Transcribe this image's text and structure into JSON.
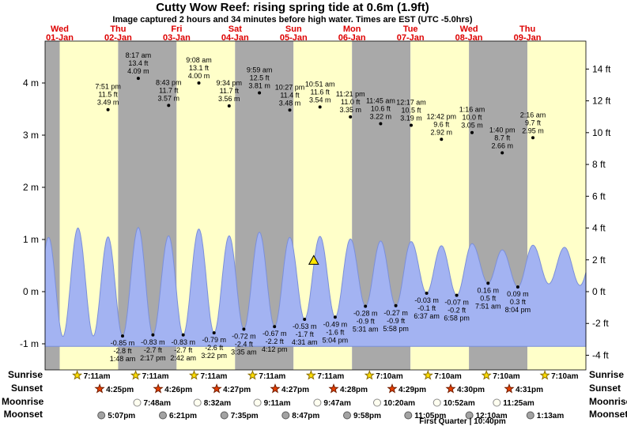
{
  "title": "Cutty Wow Reef: rising  spring tide at 0.6m (1.9ft)",
  "subtitle": "Image captured 2 hours and 34 minutes before high water. Times are EST (UTC -5.0hrs)",
  "colors": {
    "day_band_yellow": "#ffffc9",
    "day_band_gray": "#a9a9a9",
    "tide_fill": "#a3b3f2",
    "tide_stroke": "#7b8fd9",
    "day_label": "#dd0000",
    "marker_fill": "#ffe500"
  },
  "chart_data": {
    "type": "area",
    "title": "Cutty Wow Reef tide heights",
    "ylim_m": [
      -1.5,
      4.8
    ],
    "days": [
      {
        "name": "Wed",
        "date": "01-Jan"
      },
      {
        "name": "Thu",
        "date": "02-Jan"
      },
      {
        "name": "Fri",
        "date": "03-Jan"
      },
      {
        "name": "Sat",
        "date": "04-Jan"
      },
      {
        "name": "Sun",
        "date": "05-Jan"
      },
      {
        "name": "Mon",
        "date": "06-Jan"
      },
      {
        "name": "Tue",
        "date": "07-Jan"
      },
      {
        "name": "Wed",
        "date": "08-Jan"
      },
      {
        "name": "Thu",
        "date": "09-Jan"
      }
    ],
    "y_axis_left_labels": [
      {
        "label": "4 m",
        "value": 4
      },
      {
        "label": "3 m",
        "value": 3
      },
      {
        "label": "2 m",
        "value": 2
      },
      {
        "label": "1 m",
        "value": 1
      },
      {
        "label": "0 m",
        "value": 0
      },
      {
        "label": "-1 m",
        "value": -1
      }
    ],
    "y_axis_right_labels": [
      {
        "label": "14 ft",
        "value": 14
      },
      {
        "label": "12 ft",
        "value": 12
      },
      {
        "label": "10 ft",
        "value": 10
      },
      {
        "label": "8 ft",
        "value": 8
      },
      {
        "label": "6 ft",
        "value": 6
      },
      {
        "label": "4 ft",
        "value": 4
      },
      {
        "label": "2 ft",
        "value": 2
      },
      {
        "label": "0 ft",
        "value": 0
      },
      {
        "label": "-2 ft",
        "value": -2
      },
      {
        "label": "-4 ft",
        "value": -4
      }
    ],
    "high_tides": [
      {
        "time": "7:51 pm",
        "ft": "11.5 ft",
        "m": "3.49 m",
        "t": 19.85,
        "height_m": 3.49
      },
      {
        "time": "8:17 am",
        "ft": "13.4 ft",
        "m": "4.09 m",
        "t": 32.28,
        "height_m": 4.09
      },
      {
        "time": "8:43 pm",
        "ft": "11.7 ft",
        "m": "3.57 m",
        "t": 44.72,
        "height_m": 3.57
      },
      {
        "time": "9:08 am",
        "ft": "13.1 ft",
        "m": "4.00 m",
        "t": 57.13,
        "height_m": 4.0
      },
      {
        "time": "9:34 pm",
        "ft": "11.7 ft",
        "m": "3.56 m",
        "t": 69.57,
        "height_m": 3.56
      },
      {
        "time": "9:59 am",
        "ft": "12.5 ft",
        "m": "3.81 m",
        "t": 81.98,
        "height_m": 3.81
      },
      {
        "time": "10:27 pm",
        "ft": "11.4 ft",
        "m": "3.48 m",
        "t": 94.45,
        "height_m": 3.48
      },
      {
        "time": "10:51 am",
        "ft": "11.6 ft",
        "m": "3.54 m",
        "t": 106.85,
        "height_m": 3.54
      },
      {
        "time": "11:21 pm",
        "ft": "11.0 ft",
        "m": "3.35 m",
        "t": 119.35,
        "height_m": 3.35
      },
      {
        "time": "11:45 am",
        "ft": "10.6 ft",
        "m": "3.22 m",
        "t": 131.75,
        "height_m": 3.22
      },
      {
        "time": "12:17 am",
        "ft": "10.5 ft",
        "m": "3.19 m",
        "t": 144.28,
        "height_m": 3.19
      },
      {
        "time": "12:42 pm",
        "ft": "9.6 ft",
        "m": "2.92 m",
        "t": 156.7,
        "height_m": 2.92
      },
      {
        "time": "1:16 am",
        "ft": "10.0 ft",
        "m": "3.05 m",
        "t": 169.27,
        "height_m": 3.05
      },
      {
        "time": "1:40 pm",
        "ft": "8.7 ft",
        "m": "2.66 m",
        "t": 181.67,
        "height_m": 2.66
      },
      {
        "time": "2:16 am",
        "ft": "9.7 ft",
        "m": "2.95 m",
        "t": 194.27,
        "height_m": 2.95
      }
    ],
    "low_tides": [
      {
        "m": "-0.85 m",
        "ft": "-2.8 ft",
        "time": "1:48 am",
        "t": 25.8,
        "height_m": -0.85
      },
      {
        "m": "-0.83 m",
        "ft": "-2.7 ft",
        "time": "2:17 pm",
        "t": 38.28,
        "height_m": -0.83
      },
      {
        "m": "-0.83 m",
        "ft": "-2.7 ft",
        "time": "2:42 am",
        "t": 50.7,
        "height_m": -0.83
      },
      {
        "m": "-0.79 m",
        "ft": "-2.6 ft",
        "time": "3:22 pm",
        "t": 63.37,
        "height_m": -0.79
      },
      {
        "m": "-0.72 m",
        "ft": "-2.4 ft",
        "time": "3:35 am",
        "t": 75.58,
        "height_m": -0.72
      },
      {
        "m": "-0.67 m",
        "ft": "-2.2 ft",
        "time": "4:12 pm",
        "t": 88.2,
        "height_m": -0.67
      },
      {
        "m": "-0.53 m",
        "ft": "-1.7 ft",
        "time": "4:31 am",
        "t": 100.52,
        "height_m": -0.53
      },
      {
        "m": "-0.49 m",
        "ft": "-1.6 ft",
        "time": "5:04 pm",
        "t": 113.07,
        "height_m": -0.49
      },
      {
        "m": "-0.28 m",
        "ft": "-0.9 ft",
        "time": "5:31 am",
        "t": 125.52,
        "height_m": -0.28
      },
      {
        "m": "-0.27 m",
        "ft": "-0.9 ft",
        "time": "5:58 pm",
        "t": 137.97,
        "height_m": -0.27
      },
      {
        "m": "-0.03 m",
        "ft": "-0.1 ft",
        "time": "6:37 am",
        "t": 150.62,
        "height_m": -0.03
      },
      {
        "m": "-0.07 m",
        "ft": "-0.2 ft",
        "time": "6:58 pm",
        "t": 162.97,
        "height_m": -0.07
      },
      {
        "m": "0.16 m",
        "ft": "0.5 ft",
        "time": "7:51 am",
        "t": 175.85,
        "height_m": 0.16
      },
      {
        "m": "0.09 m",
        "ft": "0.3 ft",
        "time": "8:04 pm",
        "t": 188.07,
        "height_m": 0.09
      }
    ],
    "wave_extremes": [
      {
        "t": -10.7,
        "v": -0.86
      },
      {
        "t": -4.55,
        "v": 1.04
      },
      {
        "t": 1.33,
        "v": -0.86
      },
      {
        "t": 7.5,
        "v": 1.22
      },
      {
        "t": 13.8,
        "v": -0.85
      },
      {
        "t": 19.85,
        "v": 1.05
      },
      {
        "t": 25.8,
        "v": -0.85
      },
      {
        "t": 32.28,
        "v": 1.23
      },
      {
        "t": 38.28,
        "v": -0.83
      },
      {
        "t": 44.72,
        "v": 1.07
      },
      {
        "t": 50.7,
        "v": -0.83
      },
      {
        "t": 57.13,
        "v": 1.2
      },
      {
        "t": 63.37,
        "v": -0.79
      },
      {
        "t": 69.57,
        "v": 1.07
      },
      {
        "t": 75.58,
        "v": -0.72
      },
      {
        "t": 81.98,
        "v": 1.14
      },
      {
        "t": 88.2,
        "v": -0.67
      },
      {
        "t": 94.45,
        "v": 1.04
      },
      {
        "t": 100.52,
        "v": -0.53
      },
      {
        "t": 106.85,
        "v": 1.06
      },
      {
        "t": 113.07,
        "v": -0.49
      },
      {
        "t": 119.35,
        "v": 1.01
      },
      {
        "t": 125.52,
        "v": -0.28
      },
      {
        "t": 131.75,
        "v": 0.97
      },
      {
        "t": 137.97,
        "v": -0.27
      },
      {
        "t": 144.28,
        "v": 0.96
      },
      {
        "t": 150.62,
        "v": -0.03
      },
      {
        "t": 156.7,
        "v": 0.88
      },
      {
        "t": 162.97,
        "v": -0.07
      },
      {
        "t": 169.27,
        "v": 0.92
      },
      {
        "t": 175.85,
        "v": 0.16
      },
      {
        "t": 181.67,
        "v": 0.8
      },
      {
        "t": 188.07,
        "v": 0.09
      },
      {
        "t": 194.27,
        "v": 0.89
      },
      {
        "t": 200.8,
        "v": 0.15
      },
      {
        "t": 207.2,
        "v": 0.85
      },
      {
        "t": 213.6,
        "v": 0.12
      },
      {
        "t": 219.5,
        "v": 0.82
      }
    ],
    "current_marker": {
      "t": 104.28,
      "value_m": 0.6
    }
  },
  "astro": {
    "rows": [
      {
        "label": "Sunrise",
        "icon": "star",
        "icon_name": "sunrise-star-icon",
        "fill": "#ffdf00",
        "stroke": "#8a6d00",
        "events": [
          {
            "time": "7:11am",
            "t": 7.18
          },
          {
            "time": "7:11am",
            "t": 31.18
          },
          {
            "time": "7:11am",
            "t": 55.18
          },
          {
            "time": "7:11am",
            "t": 79.18
          },
          {
            "time": "7:11am",
            "t": 103.18
          },
          {
            "time": "7:10am",
            "t": 127.17
          },
          {
            "time": "7:10am",
            "t": 151.17
          },
          {
            "time": "7:10am",
            "t": 175.17
          },
          {
            "time": "7:10am",
            "t": 199.17
          }
        ]
      },
      {
        "label": "Sunset",
        "icon": "star",
        "icon_name": "sunset-star-icon",
        "fill": "#e63d00",
        "stroke": "#731f00",
        "events": [
          {
            "time": "4:25pm",
            "t": 16.42
          },
          {
            "time": "4:26pm",
            "t": 40.43
          },
          {
            "time": "4:27pm",
            "t": 64.45
          },
          {
            "time": "4:27pm",
            "t": 88.45
          },
          {
            "time": "4:28pm",
            "t": 112.47
          },
          {
            "time": "4:29pm",
            "t": 136.48
          },
          {
            "time": "4:30pm",
            "t": 160.5
          },
          {
            "time": "4:31pm",
            "t": 184.52
          }
        ]
      },
      {
        "label": "Moonrise",
        "icon": "circle",
        "icon_name": "moonrise-circle-icon",
        "fill": "#fffff0",
        "stroke": "#8c8c8c",
        "events": [
          {
            "time": "7:48am",
            "t": 31.8
          },
          {
            "time": "8:32am",
            "t": 56.53
          },
          {
            "time": "9:11am",
            "t": 81.18
          },
          {
            "time": "9:47am",
            "t": 105.78
          },
          {
            "time": "10:20am",
            "t": 130.33
          },
          {
            "time": "10:52am",
            "t": 154.87
          },
          {
            "time": "11:25am",
            "t": 179.42
          }
        ]
      },
      {
        "label": "Moonset",
        "icon": "circle",
        "icon_name": "moonset-circle-icon",
        "fill": "#a3a3a3",
        "stroke": "#5a5a5a",
        "events": [
          {
            "time": "5:07pm",
            "t": 17.12
          },
          {
            "time": "6:21pm",
            "t": 42.35
          },
          {
            "time": "7:35pm",
            "t": 67.58
          },
          {
            "time": "8:47pm",
            "t": 92.78
          },
          {
            "time": "9:58pm",
            "t": 117.97
          },
          {
            "time": "11:05pm",
            "t": 143.08
          },
          {
            "time": "12:10am",
            "t": 168.17
          },
          {
            "time": "1:13am",
            "t": 193.22
          }
        ]
      }
    ],
    "footnote": "First Quarter | 10:40pm"
  }
}
